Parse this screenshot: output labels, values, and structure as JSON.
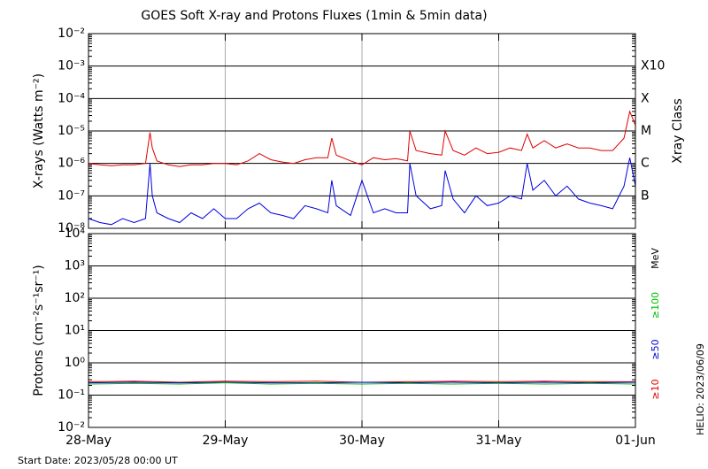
{
  "chart_data": [
    {
      "type": "line",
      "title": "GOES Soft X-ray and Protons Fluxes   (1min & 5min data)",
      "ylabel": "X-rays (Watts m⁻²)",
      "y2label": "Xray Class",
      "log_scale": true,
      "grid": true,
      "xlim": [
        0,
        96
      ],
      "xticks": [
        24,
        48,
        72
      ],
      "ylim": [
        1e-08,
        0.01
      ],
      "yticks": [
        {
          "value": 1e-08,
          "label": "10⁻⁸"
        },
        {
          "value": 1e-07,
          "label": "10⁻⁷"
        },
        {
          "value": 1e-06,
          "label": "10⁻⁶"
        },
        {
          "value": 1e-05,
          "label": "10⁻⁵"
        },
        {
          "value": 0.0001,
          "label": "10⁻⁴"
        },
        {
          "value": 0.001,
          "label": "10⁻³"
        },
        {
          "value": 0.01,
          "label": "10⁻²"
        }
      ],
      "y2lim": [
        1e-08,
        0.01
      ],
      "y2ticks": [
        {
          "value": 1e-07,
          "label": "B"
        },
        {
          "value": 1e-06,
          "label": "C"
        },
        {
          "value": 1e-05,
          "label": "M"
        },
        {
          "value": 0.0001,
          "label": "X"
        },
        {
          "value": 0.001,
          "label": "X10"
        }
      ],
      "x": [
        0,
        2,
        4,
        6,
        8,
        10,
        10.8,
        11.2,
        12,
        14,
        16,
        18,
        20,
        22,
        24,
        26,
        28,
        30,
        32,
        34,
        36,
        38,
        40,
        42,
        42.7,
        43.5,
        46,
        48,
        50,
        52,
        54,
        56,
        56.4,
        57.5,
        60,
        62,
        62.6,
        64,
        66,
        68,
        70,
        72,
        74,
        76,
        77,
        78,
        80,
        82,
        84,
        86,
        88,
        90,
        92,
        94,
        95,
        96
      ],
      "series": [
        {
          "color": "#e00000",
          "values": [
            1e-06,
            9e-07,
            8.5e-07,
            9e-07,
            9e-07,
            1e-06,
            9e-06,
            3e-06,
            1.2e-06,
            9e-07,
            8e-07,
            9e-07,
            9e-07,
            1e-06,
            1e-06,
            9e-07,
            1.2e-06,
            2e-06,
            1.3e-06,
            1.1e-06,
            1e-06,
            1.3e-06,
            1.5e-06,
            1.5e-06,
            6e-06,
            1.8e-06,
            1.2e-06,
            9e-07,
            1.5e-06,
            1.3e-06,
            1.4e-06,
            1.2e-06,
            1e-05,
            2.5e-06,
            2e-06,
            1.8e-06,
            1e-05,
            2.5e-06,
            1.8e-06,
            3e-06,
            2e-06,
            2.2e-06,
            3e-06,
            2.5e-06,
            8e-06,
            3e-06,
            5e-06,
            3e-06,
            4e-06,
            3e-06,
            3e-06,
            2.5e-06,
            2.5e-06,
            6e-06,
            4e-05,
            1.5e-05
          ]
        },
        {
          "color": "#0000e0",
          "values": [
            2e-08,
            1.5e-08,
            1.3e-08,
            2e-08,
            1.5e-08,
            2e-08,
            1e-06,
            1e-07,
            3e-08,
            2e-08,
            1.5e-08,
            3e-08,
            2e-08,
            4e-08,
            2e-08,
            2e-08,
            4e-08,
            6e-08,
            3e-08,
            2.5e-08,
            2e-08,
            5e-08,
            4e-08,
            3e-08,
            3e-07,
            5e-08,
            2.5e-08,
            3e-07,
            3e-08,
            4e-08,
            3e-08,
            3e-08,
            1e-06,
            1e-07,
            4e-08,
            5e-08,
            6e-07,
            8e-08,
            3e-08,
            1e-07,
            5e-08,
            6e-08,
            1e-07,
            8e-08,
            1e-06,
            1.5e-07,
            3e-07,
            1e-07,
            2e-07,
            8e-08,
            6e-08,
            5e-08,
            4e-08,
            2e-07,
            1.5e-06,
            2e-07
          ]
        }
      ]
    },
    {
      "type": "line",
      "ylabel": "Protons (cm⁻²s⁻¹sr⁻¹)",
      "units": "MeV",
      "log_scale": true,
      "grid": true,
      "threshold": 10,
      "xlim": [
        0,
        96
      ],
      "xticks": [
        {
          "value": 0,
          "label": "28-May"
        },
        {
          "value": 24,
          "label": "29-May"
        },
        {
          "value": 48,
          "label": "30-May"
        },
        {
          "value": 72,
          "label": "31-May"
        },
        {
          "value": 96,
          "label": "01-Jun"
        }
      ],
      "ylim": [
        0.01,
        10000.0
      ],
      "yticks": [
        {
          "value": 0.01,
          "label": "10⁻²"
        },
        {
          "value": 0.1,
          "label": "10⁻¹"
        },
        {
          "value": 1,
          "label": "10⁰"
        },
        {
          "value": 10,
          "label": "10¹"
        },
        {
          "value": 100,
          "label": "10²"
        },
        {
          "value": 1000,
          "label": "10³"
        },
        {
          "value": 10000,
          "label": "10⁴"
        }
      ],
      "x": [
        0,
        8,
        16,
        24,
        32,
        40,
        48,
        56,
        64,
        72,
        80,
        88,
        96
      ],
      "series": [
        {
          "name": "≥10",
          "color": "#e00000",
          "values": [
            0.26,
            0.27,
            0.25,
            0.27,
            0.26,
            0.27,
            0.25,
            0.26,
            0.27,
            0.26,
            0.27,
            0.26,
            0.26
          ]
        },
        {
          "name": "≥50",
          "color": "#0000e0",
          "values": [
            0.24,
            0.25,
            0.24,
            0.25,
            0.24,
            0.24,
            0.25,
            0.24,
            0.25,
            0.24,
            0.25,
            0.24,
            0.25
          ]
        },
        {
          "name": "≥100",
          "color": "#00c000",
          "values": [
            0.22,
            0.23,
            0.22,
            0.24,
            0.22,
            0.23,
            0.22,
            0.23,
            0.22,
            0.23,
            0.22,
            0.23,
            0.22
          ]
        }
      ]
    }
  ],
  "start_date": "Start Date: 2023/05/28 00:00 UT",
  "credit": "HELIO: 2023/06/09"
}
